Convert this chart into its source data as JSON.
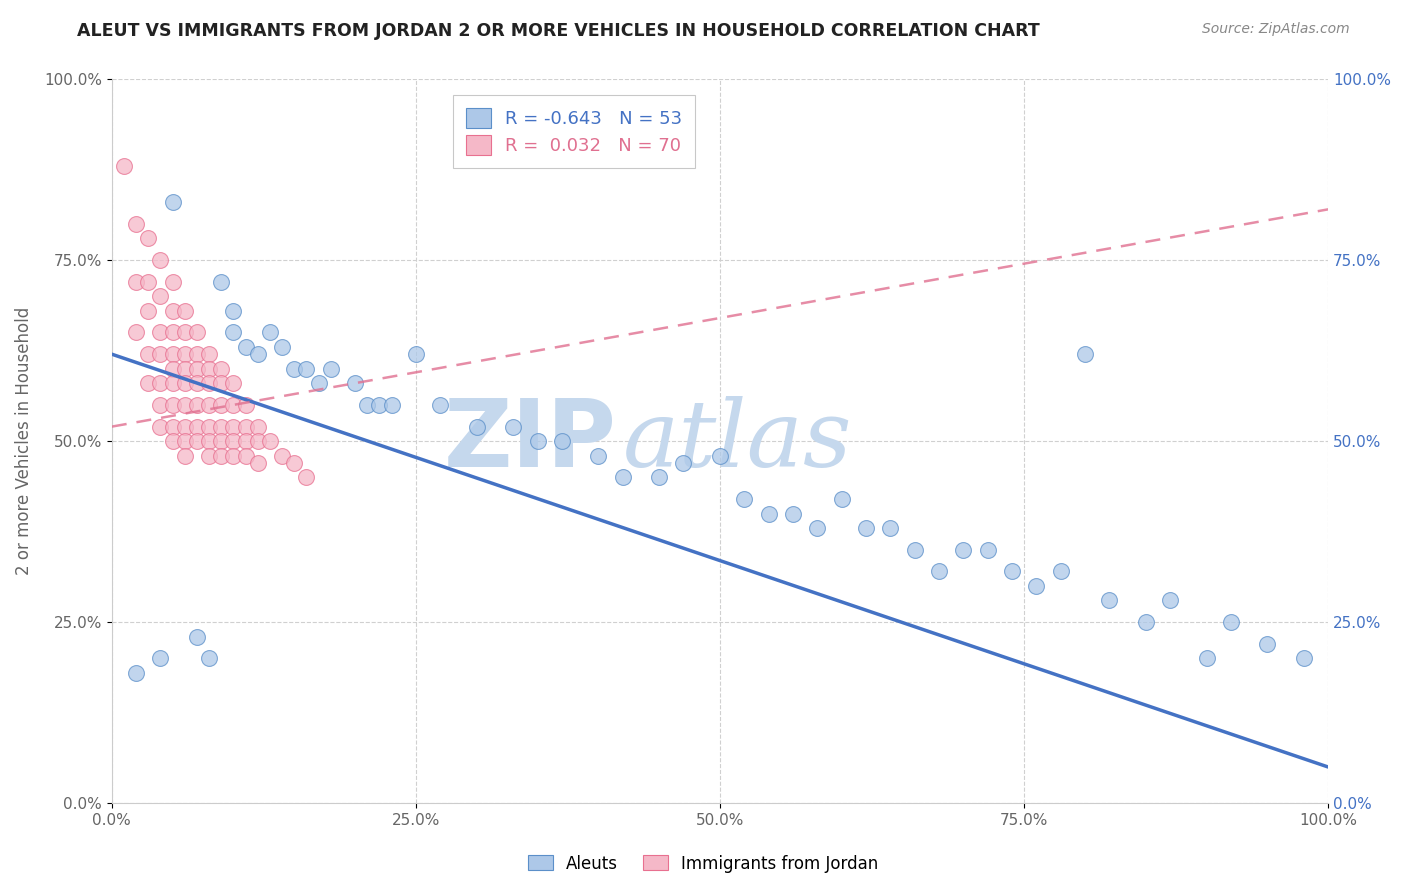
{
  "title": "ALEUT VS IMMIGRANTS FROM JORDAN 2 OR MORE VEHICLES IN HOUSEHOLD CORRELATION CHART",
  "source": "Source: ZipAtlas.com",
  "ylabel": "2 or more Vehicles in Household",
  "xlim": [
    0.0,
    1.0
  ],
  "ylim": [
    0.0,
    1.0
  ],
  "xticks": [
    0.0,
    0.25,
    0.5,
    0.75,
    1.0
  ],
  "yticks": [
    0.0,
    0.25,
    0.5,
    0.75,
    1.0
  ],
  "xtick_labels": [
    "0.0%",
    "25.0%",
    "50.0%",
    "75.0%",
    "100.0%"
  ],
  "ytick_labels": [
    "0.0%",
    "25.0%",
    "50.0%",
    "75.0%",
    "100.0%"
  ],
  "right_ytick_labels": [
    "0.0%",
    "25.0%",
    "50.0%",
    "75.0%",
    "100.0%"
  ],
  "aleut_color": "#adc8e8",
  "jordan_color": "#f5b8c8",
  "aleut_edge_color": "#5b8fc9",
  "jordan_edge_color": "#e87090",
  "aleut_line_color": "#4472c4",
  "jordan_line_color": "#e07090",
  "R_aleut": -0.643,
  "N_aleut": 53,
  "R_jordan": 0.032,
  "N_jordan": 70,
  "watermark_zip": "ZIP",
  "watermark_atlas": "atlas",
  "background_color": "#ffffff",
  "grid_color": "#d0d0d0",
  "aleut_x": [
    0.02,
    0.04,
    0.05,
    0.07,
    0.08,
    0.09,
    0.1,
    0.1,
    0.11,
    0.12,
    0.13,
    0.14,
    0.15,
    0.16,
    0.17,
    0.18,
    0.2,
    0.21,
    0.22,
    0.23,
    0.25,
    0.27,
    0.3,
    0.33,
    0.35,
    0.37,
    0.4,
    0.42,
    0.45,
    0.47,
    0.5,
    0.52,
    0.54,
    0.56,
    0.58,
    0.6,
    0.62,
    0.64,
    0.66,
    0.68,
    0.7,
    0.72,
    0.74,
    0.76,
    0.78,
    0.8,
    0.82,
    0.85,
    0.87,
    0.9,
    0.92,
    0.95,
    0.98
  ],
  "aleut_y": [
    0.18,
    0.2,
    0.83,
    0.23,
    0.2,
    0.72,
    0.65,
    0.68,
    0.63,
    0.62,
    0.65,
    0.63,
    0.6,
    0.6,
    0.58,
    0.6,
    0.58,
    0.55,
    0.55,
    0.55,
    0.62,
    0.55,
    0.52,
    0.52,
    0.5,
    0.5,
    0.48,
    0.45,
    0.45,
    0.47,
    0.48,
    0.42,
    0.4,
    0.4,
    0.38,
    0.42,
    0.38,
    0.38,
    0.35,
    0.32,
    0.35,
    0.35,
    0.32,
    0.3,
    0.32,
    0.62,
    0.28,
    0.25,
    0.28,
    0.2,
    0.25,
    0.22,
    0.2
  ],
  "jordan_x": [
    0.01,
    0.02,
    0.02,
    0.02,
    0.03,
    0.03,
    0.03,
    0.03,
    0.03,
    0.04,
    0.04,
    0.04,
    0.04,
    0.04,
    0.04,
    0.04,
    0.05,
    0.05,
    0.05,
    0.05,
    0.05,
    0.05,
    0.05,
    0.05,
    0.05,
    0.06,
    0.06,
    0.06,
    0.06,
    0.06,
    0.06,
    0.06,
    0.06,
    0.06,
    0.07,
    0.07,
    0.07,
    0.07,
    0.07,
    0.07,
    0.07,
    0.08,
    0.08,
    0.08,
    0.08,
    0.08,
    0.08,
    0.08,
    0.09,
    0.09,
    0.09,
    0.09,
    0.09,
    0.09,
    0.1,
    0.1,
    0.1,
    0.1,
    0.1,
    0.11,
    0.11,
    0.11,
    0.11,
    0.12,
    0.12,
    0.12,
    0.13,
    0.14,
    0.15,
    0.16
  ],
  "jordan_y": [
    0.88,
    0.8,
    0.72,
    0.65,
    0.78,
    0.72,
    0.68,
    0.62,
    0.58,
    0.75,
    0.7,
    0.65,
    0.62,
    0.58,
    0.55,
    0.52,
    0.72,
    0.68,
    0.65,
    0.62,
    0.6,
    0.58,
    0.55,
    0.52,
    0.5,
    0.68,
    0.65,
    0.62,
    0.6,
    0.58,
    0.55,
    0.52,
    0.5,
    0.48,
    0.65,
    0.62,
    0.6,
    0.58,
    0.55,
    0.52,
    0.5,
    0.62,
    0.6,
    0.58,
    0.55,
    0.52,
    0.5,
    0.48,
    0.6,
    0.58,
    0.55,
    0.52,
    0.5,
    0.48,
    0.58,
    0.55,
    0.52,
    0.5,
    0.48,
    0.55,
    0.52,
    0.5,
    0.48,
    0.52,
    0.5,
    0.47,
    0.5,
    0.48,
    0.47,
    0.45
  ],
  "blue_line_x0": 0.0,
  "blue_line_y0": 0.62,
  "blue_line_x1": 1.0,
  "blue_line_y1": 0.05,
  "pink_line_x0": 0.0,
  "pink_line_y0": 0.52,
  "pink_line_x1": 1.0,
  "pink_line_y1": 0.82
}
